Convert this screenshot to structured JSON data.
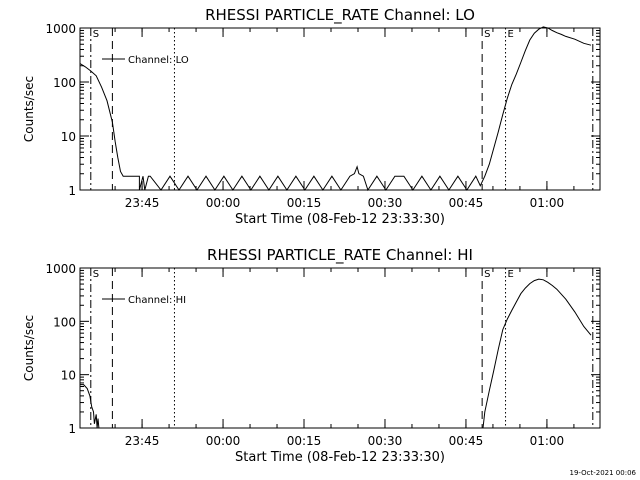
{
  "footer_timestamp": "19-Oct-2021 00:06",
  "chart_data": [
    {
      "type": "line",
      "title": "RHESSI PARTICLE_RATE Channel: LO",
      "xlabel": "Start Time (08-Feb-12 23:33:30)",
      "ylabel": "Counts/sec",
      "yscale": "log",
      "ylim": [
        1,
        1000
      ],
      "xlim": [
        0,
        5780
      ],
      "ytick_labels": [
        "1",
        "10",
        "100",
        "1000"
      ],
      "ytick_values": [
        1,
        10,
        100,
        1000
      ],
      "xtick_labels": [
        "23:45",
        "00:00",
        "00:15",
        "00:30",
        "00:45",
        "01:00"
      ],
      "xtick_values": [
        690,
        1590,
        2490,
        3390,
        4290,
        5190
      ],
      "legend": "Channel: LO",
      "legend_placement": "top-left",
      "markers": [
        {
          "label": "S",
          "x": 120,
          "style": "dash-dot"
        },
        {
          "label": "",
          "x": 360,
          "style": "dashed"
        },
        {
          "label": "",
          "x": 1050,
          "style": "dotted"
        },
        {
          "label": "S",
          "x": 4470,
          "style": "dashed"
        },
        {
          "label": "E",
          "x": 4730,
          "style": "dotted"
        },
        {
          "label": "",
          "x": 5700,
          "style": "dash-dot"
        }
      ],
      "series": [
        {
          "name": "Channel: LO",
          "x": [
            0,
            60,
            120,
            180,
            240,
            300,
            360,
            390,
            420,
            450,
            480,
            540,
            600,
            660,
            660,
            700,
            720,
            760,
            780,
            900,
            1000,
            1100,
            1200,
            1300,
            1400,
            1500,
            1600,
            1700,
            1800,
            1900,
            2000,
            2100,
            2200,
            2300,
            2400,
            2500,
            2600,
            2700,
            2800,
            2900,
            3000,
            3050,
            3080,
            3100,
            3150,
            3200,
            3300,
            3400,
            3500,
            3600,
            3700,
            3800,
            3900,
            4000,
            4100,
            4200,
            4300,
            4400,
            4450,
            4500,
            4550,
            4600,
            4650,
            4700,
            4750,
            4800,
            4850,
            4900,
            4950,
            5000,
            5050,
            5100,
            5150,
            5200,
            5250,
            5300,
            5350,
            5400,
            5500,
            5600,
            5680
          ],
          "y": [
            220,
            190,
            160,
            130,
            80,
            45,
            18,
            8,
            4,
            2.2,
            1.8,
            1.8,
            1.8,
            1.8,
            1,
            1.8,
            1,
            1.8,
            1.8,
            1,
            1.8,
            1,
            1.8,
            1,
            1.8,
            1,
            1.8,
            1,
            1.8,
            1,
            1.8,
            1,
            1.8,
            1,
            1.8,
            1,
            1.8,
            1,
            1.8,
            1,
            1.8,
            2,
            2.7,
            2,
            1.8,
            1,
            1.8,
            1,
            1.8,
            1.8,
            1,
            1.8,
            1,
            1.8,
            1,
            1.8,
            1,
            1.8,
            1.2,
            1.8,
            3,
            6,
            12,
            25,
            50,
            90,
            140,
            230,
            380,
            600,
            800,
            950,
            1050,
            1000,
            900,
            820,
            760,
            700,
            620,
            520,
            480
          ]
        }
      ]
    },
    {
      "type": "line",
      "title": "RHESSI PARTICLE_RATE Channel: HI",
      "xlabel": "Start Time (08-Feb-12 23:33:30)",
      "ylabel": "Counts/sec",
      "yscale": "log",
      "ylim": [
        1,
        1000
      ],
      "xlim": [
        0,
        5780
      ],
      "ytick_labels": [
        "1",
        "10",
        "100",
        "1000"
      ],
      "ytick_values": [
        1,
        10,
        100,
        1000
      ],
      "xtick_labels": [
        "23:45",
        "00:00",
        "00:15",
        "00:30",
        "00:45",
        "01:00"
      ],
      "xtick_values": [
        690,
        1590,
        2490,
        3390,
        4290,
        5190
      ],
      "legend": "Channel: HI",
      "legend_placement": "top-left",
      "markers": [
        {
          "label": "S",
          "x": 120,
          "style": "dash-dot"
        },
        {
          "label": "",
          "x": 360,
          "style": "dashed"
        },
        {
          "label": "",
          "x": 1050,
          "style": "dotted"
        },
        {
          "label": "S",
          "x": 4470,
          "style": "dashed"
        },
        {
          "label": "E",
          "x": 4730,
          "style": "dotted"
        },
        {
          "label": "",
          "x": 5700,
          "style": "dash-dot"
        }
      ],
      "series": [
        {
          "name": "Channel: HI",
          "x": [
            0,
            40,
            80,
            110,
            130,
            150,
            160,
            180,
            190,
            200,
            210,
            4480,
            4500,
            4550,
            4600,
            4650,
            4700,
            4750,
            4800,
            4850,
            4900,
            4950,
            5000,
            5050,
            5100,
            5150,
            5200,
            5250,
            5300,
            5400,
            5500,
            5600,
            5680
          ],
          "y": [
            6.5,
            6.5,
            5.5,
            4,
            2.5,
            2,
            1.2,
            1.8,
            1,
            1.5,
            1,
            1,
            2,
            5,
            12,
            30,
            70,
            110,
            160,
            230,
            330,
            420,
            510,
            580,
            620,
            600,
            540,
            470,
            400,
            260,
            150,
            80,
            55
          ]
        }
      ]
    }
  ]
}
